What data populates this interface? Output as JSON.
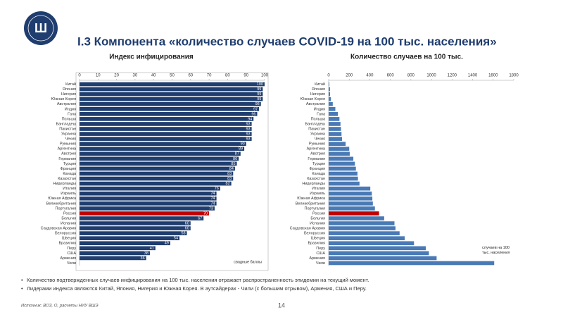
{
  "slide": {
    "title": "I.3 Компонента «количество случаев COVID-19 на 100 тыс. населения»",
    "bullets": [
      "Количество подтвержденных случаев инфицирования на 100 тыс. населения отражает распространенность эпидемии на текущий момент.",
      "Лидерами индекса являются Китай, Япония, Нигерия и Южная Корея. В аутсайдерах - Чили (с большим отрывом), Армения, США и Перу."
    ],
    "source": "Источник: ВОЗ, О, расчеты НИУ ВШЭ",
    "page": "14"
  },
  "chart_data": [
    {
      "type": "barh",
      "title": "Индекс инфицирования",
      "annotation": "сводные баллы",
      "categories": [
        "Китай",
        "Япония",
        "Нигерия",
        "Южная Корея",
        "Австралия",
        "Индия",
        "Гана",
        "Польша",
        "Бангладеш",
        "Пакистан",
        "Украина",
        "Чехия",
        "Румыния",
        "Аргентина",
        "Австрия",
        "Германия",
        "Турция",
        "Франция",
        "Канада",
        "Казахстан",
        "Нидерланды",
        "Италия",
        "Израиль",
        "Южная Африка",
        "Великобритания",
        "Португалия",
        "Россия",
        "Бельгия",
        "Испания",
        "Саудовская Аравия",
        "Белоруссия",
        "Швеция",
        "Бразилия",
        "Перу",
        "США",
        "Армения",
        "Чили"
      ],
      "values": [
        100,
        99,
        99,
        99,
        98,
        97,
        96,
        94,
        93,
        93,
        93,
        93,
        90,
        89,
        87,
        86,
        85,
        84,
        83,
        83,
        82,
        76,
        74,
        74,
        74,
        73,
        70,
        67,
        60,
        60,
        58,
        54,
        49,
        41,
        38,
        36,
        0
      ],
      "colors": [
        "#1f3d6e",
        "#1f3d6e",
        "#1f3d6e",
        "#1f3d6e",
        "#1f3d6e",
        "#1f3d6e",
        "#1f3d6e",
        "#1f3d6e",
        "#1f3d6e",
        "#1f3d6e",
        "#1f3d6e",
        "#1f3d6e",
        "#1f3d6e",
        "#1f3d6e",
        "#1f3d6e",
        "#1f3d6e",
        "#1f3d6e",
        "#1f3d6e",
        "#1f3d6e",
        "#1f3d6e",
        "#1f3d6e",
        "#1f3d6e",
        "#1f3d6e",
        "#1f3d6e",
        "#1f3d6e",
        "#1f3d6e",
        "#c00000",
        "#1f3d6e",
        "#1f3d6e",
        "#1f3d6e",
        "#1f3d6e",
        "#1f3d6e",
        "#1f3d6e",
        "#1f3d6e",
        "#1f3d6e",
        "#1f3d6e",
        "#1f3d6e"
      ],
      "xlim": [
        0,
        100
      ],
      "xticks": [
        0,
        10,
        20,
        30,
        40,
        50,
        60,
        70,
        80,
        90,
        100
      ],
      "value_labels_shown": true,
      "frame": true
    },
    {
      "type": "barh",
      "title": "Количество случаев на 100 тыс.",
      "annotation": "случаев на 100 тыс. населения",
      "categories": [
        "Китай",
        "Япония",
        "Нигерия",
        "Южная Корея",
        "Австралия",
        "Индия",
        "Гана",
        "Польша",
        "Бангладеш",
        "Пакистан",
        "Украина",
        "Чехия",
        "Румыния",
        "Аргентина",
        "Австрия",
        "Германия",
        "Турция",
        "Франция",
        "Канада",
        "Казахстан",
        "Нидерланды",
        "Италия",
        "Израиль",
        "Южная Африка",
        "Великобритания",
        "Португалия",
        "Россия",
        "Бельгия",
        "Испания",
        "Саудовская Аравия",
        "Белоруссия",
        "Швеция",
        "Бразилия",
        "Перу",
        "США",
        "Армения",
        "Чили"
      ],
      "values": [
        6,
        13,
        14,
        22,
        40,
        65,
        90,
        105,
        115,
        120,
        125,
        130,
        165,
        200,
        205,
        240,
        255,
        265,
        280,
        285,
        300,
        405,
        420,
        425,
        430,
        450,
        490,
        540,
        640,
        650,
        690,
        740,
        830,
        945,
        975,
        1050,
        1610
      ],
      "colors": [
        "#4a7ab5",
        "#4a7ab5",
        "#4a7ab5",
        "#4a7ab5",
        "#4a7ab5",
        "#4a7ab5",
        "#4a7ab5",
        "#4a7ab5",
        "#4a7ab5",
        "#4a7ab5",
        "#4a7ab5",
        "#4a7ab5",
        "#4a7ab5",
        "#4a7ab5",
        "#4a7ab5",
        "#4a7ab5",
        "#4a7ab5",
        "#4a7ab5",
        "#4a7ab5",
        "#4a7ab5",
        "#4a7ab5",
        "#4a7ab5",
        "#4a7ab5",
        "#4a7ab5",
        "#4a7ab5",
        "#4a7ab5",
        "#c00000",
        "#4a7ab5",
        "#4a7ab5",
        "#4a7ab5",
        "#4a7ab5",
        "#4a7ab5",
        "#4a7ab5",
        "#4a7ab5",
        "#4a7ab5",
        "#4a7ab5",
        "#4a7ab5"
      ],
      "xlim": [
        0,
        1800
      ],
      "xticks": [
        0,
        200,
        400,
        600,
        800,
        1000,
        1200,
        1400,
        1600,
        1800
      ],
      "value_labels_shown": false,
      "frame": false
    }
  ]
}
